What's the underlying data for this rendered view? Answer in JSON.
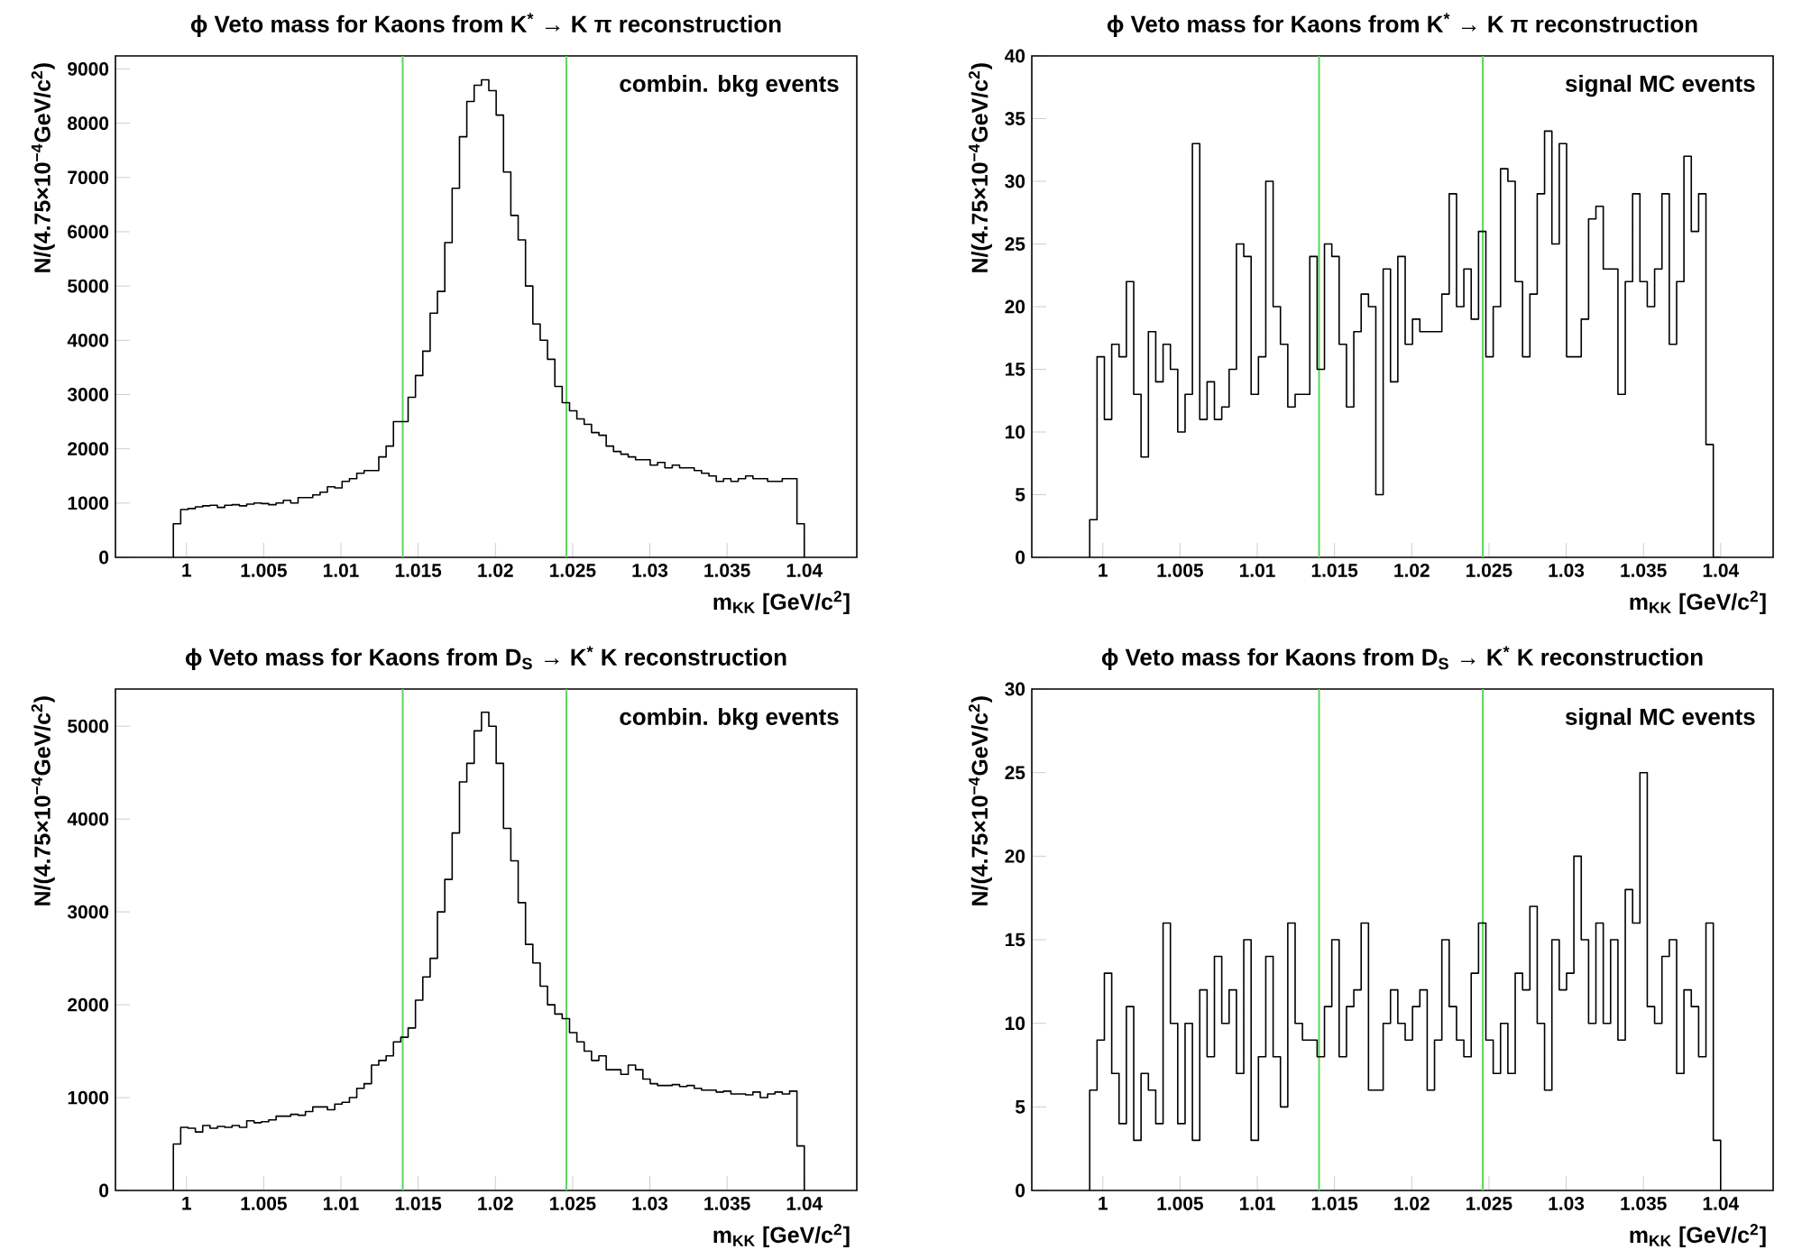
{
  "chart_data": [
    {
      "type": "histogram",
      "title": "ϕ Veto mass for Kaons from K$^{*}$ → K π reconstruction",
      "xlabel": "m$_{KK}$ [GeV/c$^{2}$]",
      "ylabel": "N/(4.75×10$^{−4}$GeV/c$^{2}$)",
      "annotations": [
        "combin. bkg events"
      ],
      "color": "#000000",
      "bins": [
        0.99915,
        0.999625,
        1.0001,
        1.000575,
        1.00105,
        1.001525,
        1.002,
        1.002475,
        1.00295,
        1.003425,
        1.0039,
        1.004375,
        1.00485,
        1.005325,
        1.0058,
        1.006275,
        1.00675,
        1.007225,
        1.0077,
        1.008175,
        1.00865,
        1.009125,
        1.0096,
        1.010075,
        1.01055,
        1.011025,
        1.0115,
        1.011975,
        1.01245,
        1.012925,
        1.0134,
        1.013875,
        1.01435,
        1.014825,
        1.0153,
        1.015775,
        1.01625,
        1.016725,
        1.0172,
        1.017675,
        1.01815,
        1.018625,
        1.0191,
        1.019575,
        1.02005,
        1.020525,
        1.021,
        1.021475,
        1.02195,
        1.022425,
        1.0229,
        1.023375,
        1.02385,
        1.024325,
        1.0248,
        1.025275,
        1.02575,
        1.026225,
        1.0267,
        1.027175,
        1.02765,
        1.028125,
        1.0286,
        1.029075,
        1.02955,
        1.030025,
        1.0305,
        1.030975,
        1.03145,
        1.031925,
        1.0324,
        1.032875,
        1.03335,
        1.033825,
        1.0343,
        1.034775,
        1.03525,
        1.035725,
        1.0362,
        1.036675,
        1.03715,
        1.037625,
        1.0381,
        1.038575,
        1.03905,
        1.039525,
        1.04
      ],
      "values": [
        620,
        880,
        900,
        930,
        950,
        960,
        920,
        960,
        970,
        950,
        980,
        1000,
        990,
        970,
        1000,
        1050,
        1000,
        1100,
        1100,
        1150,
        1200,
        1300,
        1280,
        1400,
        1450,
        1550,
        1600,
        1600,
        1850,
        2050,
        2500,
        2500,
        2950,
        3350,
        3800,
        4500,
        4900,
        5800,
        6800,
        7750,
        8400,
        8700,
        8800,
        8600,
        8150,
        7100,
        6300,
        5850,
        5000,
        4300,
        4000,
        3650,
        3150,
        2850,
        2700,
        2550,
        2450,
        2300,
        2250,
        2050,
        1950,
        1900,
        1850,
        1800,
        1800,
        1700,
        1750,
        1650,
        1700,
        1650,
        1650,
        1600,
        1550,
        1500,
        1400,
        1450,
        1400,
        1450,
        1500,
        1450,
        1450,
        1400,
        1400,
        1450,
        1450,
        620
      ],
      "xlim": [
        0.9954,
        1.0434
      ],
      "ylim": [
        0,
        9240
      ],
      "xticks": [
        1,
        1.005,
        1.01,
        1.015,
        1.02,
        1.025,
        1.03,
        1.035,
        1.04
      ],
      "yticks": [
        0,
        1000,
        2000,
        3000,
        4000,
        5000,
        6000,
        7000,
        8000,
        9000
      ],
      "ref_lines": [
        {
          "axis": "x",
          "value": 1.014,
          "color": "#5cd65c"
        },
        {
          "axis": "x",
          "value": 1.0246,
          "color": "#5cd65c"
        }
      ]
    },
    {
      "type": "histogram",
      "title": "ϕ Veto mass for Kaons from K$^{*}$ → K π reconstruction",
      "xlabel": "m$_{KK}$ [GeV/c$^{2}$]",
      "ylabel": "N/(4.75×10$^{−4}$GeV/c$^{2}$)",
      "annotations": [
        "signal MC events"
      ],
      "color": "#000000",
      "bins": [
        0.99915,
        0.999625,
        1.0001,
        1.000575,
        1.00105,
        1.001525,
        1.002,
        1.002475,
        1.00295,
        1.003425,
        1.0039,
        1.004375,
        1.00485,
        1.005325,
        1.0058,
        1.006275,
        1.00675,
        1.007225,
        1.0077,
        1.008175,
        1.00865,
        1.009125,
        1.0096,
        1.010075,
        1.01055,
        1.011025,
        1.0115,
        1.011975,
        1.01245,
        1.012925,
        1.0134,
        1.013875,
        1.01435,
        1.014825,
        1.0153,
        1.015775,
        1.01625,
        1.016725,
        1.0172,
        1.017675,
        1.01815,
        1.018625,
        1.0191,
        1.019575,
        1.02005,
        1.020525,
        1.021,
        1.021475,
        1.02195,
        1.022425,
        1.0229,
        1.023375,
        1.02385,
        1.024325,
        1.0248,
        1.025275,
        1.02575,
        1.026225,
        1.0267,
        1.027175,
        1.02765,
        1.028125,
        1.0286,
        1.029075,
        1.02955,
        1.030025,
        1.0305,
        1.030975,
        1.03145,
        1.031925,
        1.0324,
        1.032875,
        1.03335,
        1.033825,
        1.0343,
        1.034775,
        1.03525,
        1.035725,
        1.0362,
        1.036675,
        1.03715,
        1.037625,
        1.0381,
        1.038575,
        1.03905,
        1.039525,
        1.04
      ],
      "values": [
        3,
        16,
        11,
        17,
        16,
        22,
        13,
        8,
        18,
        14,
        17,
        15,
        10,
        13,
        33,
        11,
        14,
        11,
        12,
        15,
        25,
        24,
        13,
        16,
        30,
        20,
        17,
        12,
        13,
        13,
        24,
        15,
        25,
        24,
        17,
        12,
        18,
        21,
        20,
        5,
        23,
        14,
        24,
        17,
        19,
        18,
        18,
        18,
        21,
        29,
        20,
        23,
        19,
        26,
        16,
        20,
        31,
        30,
        22,
        16,
        21,
        29,
        34,
        25,
        33,
        16,
        16,
        19,
        27,
        28,
        23,
        23,
        13,
        22,
        29,
        22,
        20,
        23,
        29,
        17,
        22,
        32,
        26,
        29,
        9,
        0
      ],
      "xlim": [
        0.9954,
        1.0434
      ],
      "ylim": [
        0,
        40
      ],
      "xticks": [
        1,
        1.005,
        1.01,
        1.015,
        1.02,
        1.025,
        1.03,
        1.035,
        1.04
      ],
      "yticks": [
        0,
        5,
        10,
        15,
        20,
        25,
        30,
        35,
        40
      ],
      "ref_lines": [
        {
          "axis": "x",
          "value": 1.014,
          "color": "#5cd65c"
        },
        {
          "axis": "x",
          "value": 1.0246,
          "color": "#5cd65c"
        }
      ]
    },
    {
      "type": "histogram",
      "title": "ϕ Veto mass for Kaons from D$_{S}$ → K$^{*}$ K reconstruction",
      "xlabel": "m$_{KK}$ [GeV/c$^{2}$]",
      "ylabel": "N/(4.75×10$^{−4}$GeV/c$^{2}$)",
      "annotations": [
        "combin. bkg events"
      ],
      "color": "#000000",
      "bins": [
        0.99915,
        0.999625,
        1.0001,
        1.000575,
        1.00105,
        1.001525,
        1.002,
        1.002475,
        1.00295,
        1.003425,
        1.0039,
        1.004375,
        1.00485,
        1.005325,
        1.0058,
        1.006275,
        1.00675,
        1.007225,
        1.0077,
        1.008175,
        1.00865,
        1.009125,
        1.0096,
        1.010075,
        1.01055,
        1.011025,
        1.0115,
        1.011975,
        1.01245,
        1.012925,
        1.0134,
        1.013875,
        1.01435,
        1.014825,
        1.0153,
        1.015775,
        1.01625,
        1.016725,
        1.0172,
        1.017675,
        1.01815,
        1.018625,
        1.0191,
        1.019575,
        1.02005,
        1.020525,
        1.021,
        1.021475,
        1.02195,
        1.022425,
        1.0229,
        1.023375,
        1.02385,
        1.024325,
        1.0248,
        1.025275,
        1.02575,
        1.026225,
        1.0267,
        1.027175,
        1.02765,
        1.028125,
        1.0286,
        1.029075,
        1.02955,
        1.030025,
        1.0305,
        1.030975,
        1.03145,
        1.031925,
        1.0324,
        1.032875,
        1.03335,
        1.033825,
        1.0343,
        1.034775,
        1.03525,
        1.035725,
        1.0362,
        1.036675,
        1.03715,
        1.037625,
        1.0381,
        1.038575,
        1.03905,
        1.039525,
        1.04
      ],
      "values": [
        500,
        680,
        670,
        630,
        700,
        670,
        690,
        680,
        700,
        680,
        750,
        730,
        740,
        760,
        800,
        800,
        820,
        810,
        850,
        900,
        900,
        870,
        930,
        950,
        1000,
        1100,
        1150,
        1350,
        1400,
        1450,
        1600,
        1650,
        1750,
        2050,
        2300,
        2500,
        3000,
        3350,
        3850,
        4400,
        4600,
        4950,
        5150,
        5000,
        4600,
        3900,
        3550,
        3100,
        2650,
        2450,
        2200,
        2000,
        1900,
        1850,
        1700,
        1600,
        1500,
        1400,
        1450,
        1300,
        1300,
        1250,
        1350,
        1300,
        1200,
        1150,
        1130,
        1130,
        1140,
        1120,
        1130,
        1100,
        1080,
        1080,
        1060,
        1070,
        1040,
        1040,
        1030,
        1060,
        1000,
        1040,
        1060,
        1040,
        1070,
        480
      ],
      "xlim": [
        0.9954,
        1.0434
      ],
      "ylim": [
        0,
        5400
      ],
      "xticks": [
        1,
        1.005,
        1.01,
        1.015,
        1.02,
        1.025,
        1.03,
        1.035,
        1.04
      ],
      "yticks": [
        0,
        1000,
        2000,
        3000,
        4000,
        5000
      ],
      "ref_lines": [
        {
          "axis": "x",
          "value": 1.014,
          "color": "#5cd65c"
        },
        {
          "axis": "x",
          "value": 1.0246,
          "color": "#5cd65c"
        }
      ]
    },
    {
      "type": "histogram",
      "title": "ϕ Veto mass for Kaons from D$_{S}$ → K$^{*}$ K reconstruction",
      "xlabel": "m$_{KK}$ [GeV/c$^{2}$]",
      "ylabel": "N/(4.75×10$^{−4}$GeV/c$^{2}$)",
      "annotations": [
        "signal MC events"
      ],
      "color": "#000000",
      "bins": [
        0.99915,
        0.999625,
        1.0001,
        1.000575,
        1.00105,
        1.001525,
        1.002,
        1.002475,
        1.00295,
        1.003425,
        1.0039,
        1.004375,
        1.00485,
        1.005325,
        1.0058,
        1.006275,
        1.00675,
        1.007225,
        1.0077,
        1.008175,
        1.00865,
        1.009125,
        1.0096,
        1.010075,
        1.01055,
        1.011025,
        1.0115,
        1.011975,
        1.01245,
        1.012925,
        1.0134,
        1.013875,
        1.01435,
        1.014825,
        1.0153,
        1.015775,
        1.01625,
        1.016725,
        1.0172,
        1.017675,
        1.01815,
        1.018625,
        1.0191,
        1.019575,
        1.02005,
        1.020525,
        1.021,
        1.021475,
        1.02195,
        1.022425,
        1.0229,
        1.023375,
        1.02385,
        1.024325,
        1.0248,
        1.025275,
        1.02575,
        1.026225,
        1.0267,
        1.027175,
        1.02765,
        1.028125,
        1.0286,
        1.029075,
        1.02955,
        1.030025,
        1.0305,
        1.030975,
        1.03145,
        1.031925,
        1.0324,
        1.032875,
        1.03335,
        1.033825,
        1.0343,
        1.034775,
        1.03525,
        1.035725,
        1.0362,
        1.036675,
        1.03715,
        1.037625,
        1.0381,
        1.038575,
        1.03905,
        1.039525,
        1.04
      ],
      "values": [
        6,
        9,
        13,
        7,
        4,
        11,
        3,
        7,
        6,
        4,
        16,
        10,
        4,
        10,
        3,
        12,
        8,
        14,
        10,
        12,
        7,
        15,
        3,
        8,
        14,
        8,
        5,
        16,
        10,
        9,
        9,
        8,
        11,
        15,
        8,
        11,
        12,
        16,
        6,
        6,
        10,
        12,
        10,
        9,
        11,
        12,
        6,
        9,
        15,
        11,
        9,
        8,
        13,
        16,
        9,
        7,
        10,
        7,
        13,
        12,
        17,
        10,
        6,
        15,
        12,
        13,
        20,
        15,
        10,
        16,
        10,
        15,
        9,
        18,
        16,
        25,
        11,
        10,
        14,
        15,
        7,
        12,
        11,
        8,
        16,
        3
      ],
      "xlim": [
        0.9954,
        1.0434
      ],
      "ylim": [
        0,
        30
      ],
      "xticks": [
        1,
        1.005,
        1.01,
        1.015,
        1.02,
        1.025,
        1.03,
        1.035,
        1.04
      ],
      "yticks": [
        0,
        5,
        10,
        15,
        20,
        25,
        30
      ],
      "ref_lines": [
        {
          "axis": "x",
          "value": 1.014,
          "color": "#5cd65c"
        },
        {
          "axis": "x",
          "value": 1.0246,
          "color": "#5cd65c"
        }
      ]
    }
  ]
}
